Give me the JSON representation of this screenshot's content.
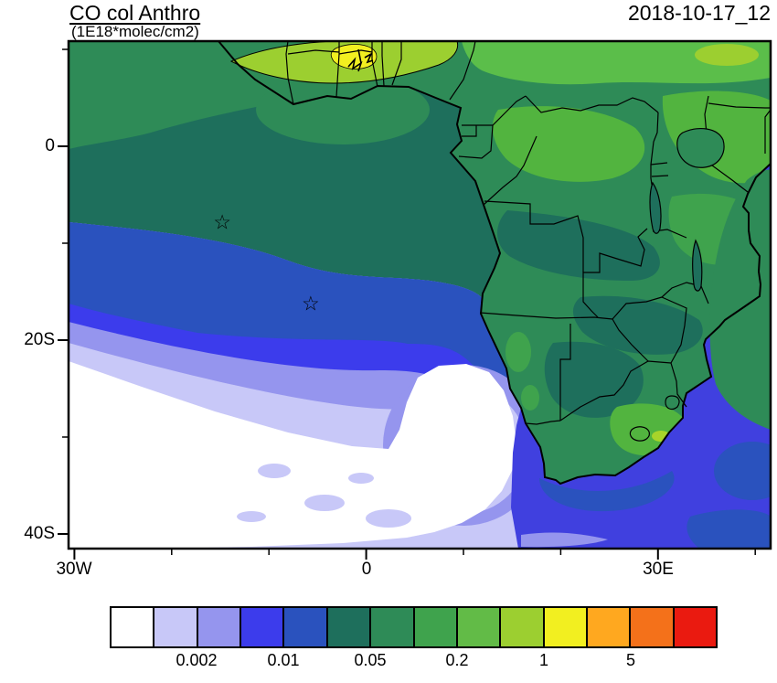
{
  "chart_data": {
    "type": "heatmap",
    "title": "CO col Anthro",
    "units_label": "(1E18*molec/cm2)",
    "timestamp": "2018-10-17_12",
    "projection": "cylindrical lat-lon map, South Atlantic / southern Africa",
    "lon_range": [
      -30.6,
      41.6
    ],
    "lat_range": [
      -41.5,
      10.8
    ],
    "grid": false,
    "legend_position": "bottom-colorbar",
    "xticks": [
      {
        "lon": -30,
        "label": "30W"
      },
      {
        "lon": 0,
        "label": "0"
      },
      {
        "lon": 30,
        "label": "30E"
      }
    ],
    "yticks": [
      {
        "lat": 0,
        "label": "0"
      },
      {
        "lat": -20,
        "label": "20S"
      },
      {
        "lat": -40,
        "label": "40S"
      }
    ],
    "colorbar": {
      "levels": [
        0.001,
        0.002,
        0.005,
        0.01,
        0.02,
        0.05,
        0.1,
        0.2,
        0.5,
        1,
        2,
        5,
        10
      ],
      "colors": [
        "#ffffff",
        "#c8c8f8",
        "#9595ee",
        "#3c3cec",
        "#2a52be",
        "#1e6f5c",
        "#2e8b57",
        "#3fa34d",
        "#62bb47",
        "#9ccf30",
        "#f2ef20",
        "#ffa81f",
        "#f4711a",
        "#ea1a10"
      ],
      "labels": [
        {
          "text": "0.002",
          "boundary_index": 2
        },
        {
          "text": "0.01",
          "boundary_index": 4
        },
        {
          "text": "0.05",
          "boundary_index": 6
        },
        {
          "text": "0.2",
          "boundary_index": 8
        },
        {
          "text": "1",
          "boundary_index": 10
        },
        {
          "text": "5",
          "boundary_index": 12
        }
      ]
    },
    "markers": [
      {
        "symbol": "star",
        "glyph": "☆",
        "lon": -14.8,
        "lat": -8.0
      },
      {
        "symbol": "star",
        "glyph": "☆",
        "lon": -5.7,
        "lat": -16.4
      }
    ]
  }
}
